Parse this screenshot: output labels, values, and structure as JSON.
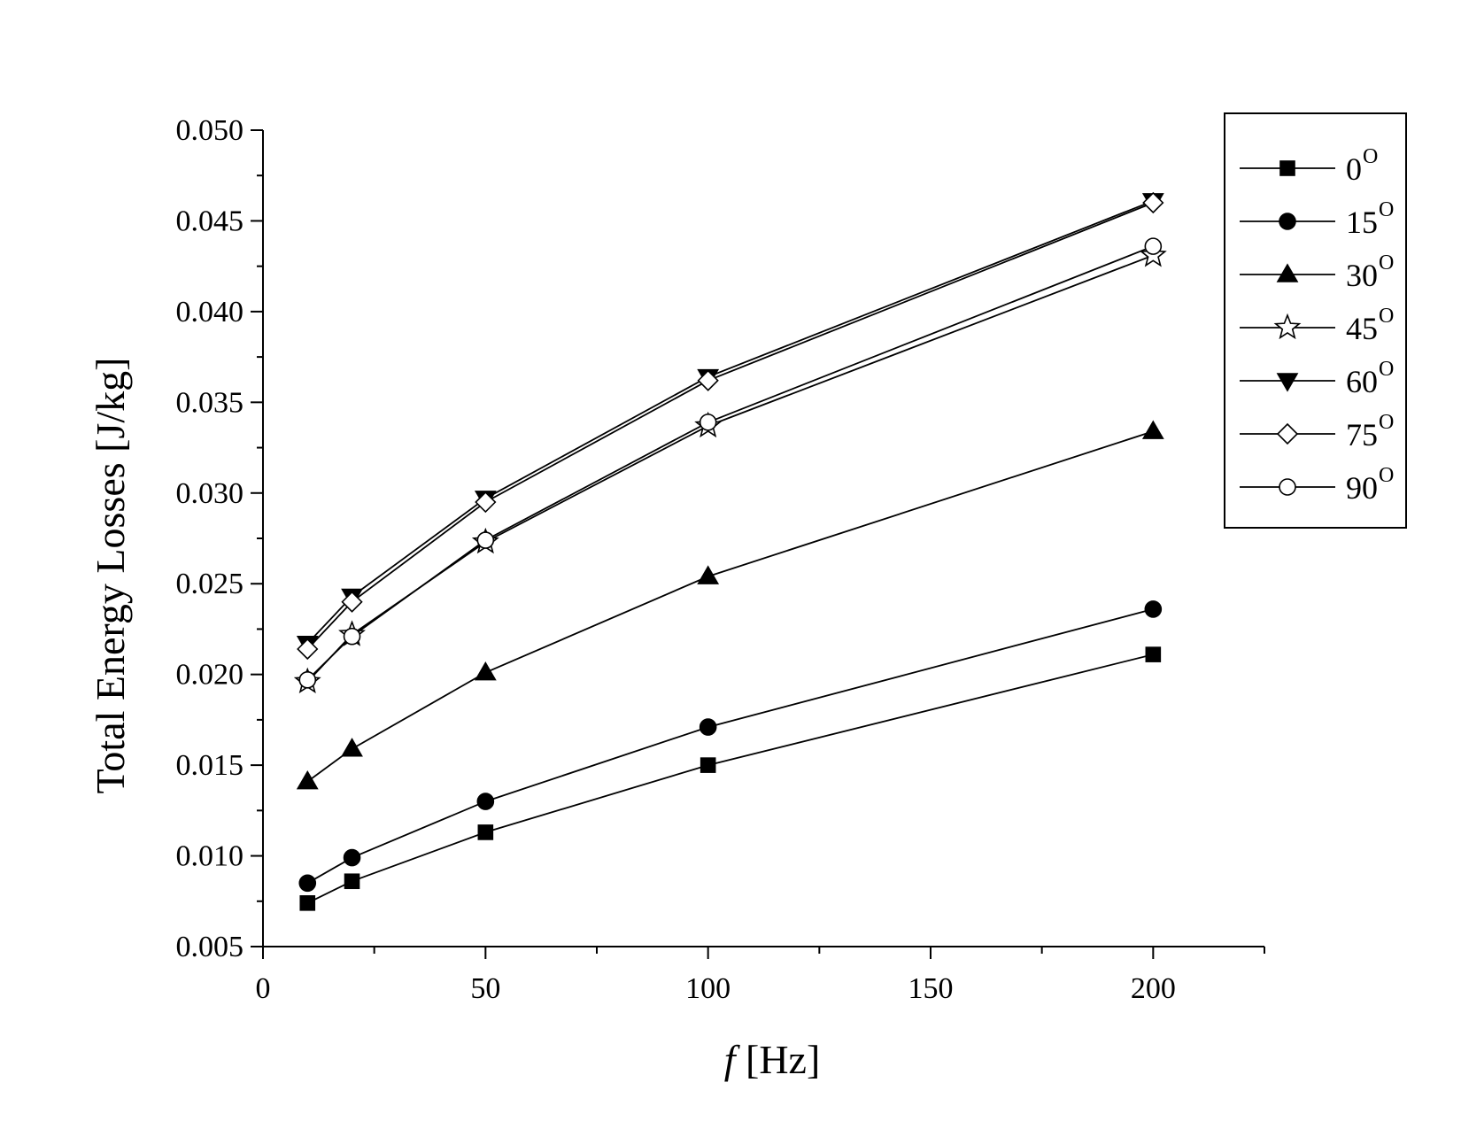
{
  "chart_data": {
    "type": "line",
    "xlabel_italic": "f",
    "xlabel_rest": " [Hz]",
    "ylabel": "Total Energy Losses [J/kg]",
    "xlim": [
      0,
      225
    ],
    "ylim": [
      0.005,
      0.05
    ],
    "x_ticks": [
      0,
      50,
      100,
      150,
      200
    ],
    "x_tick_labels": [
      "0",
      "50",
      "100",
      "150",
      "200"
    ],
    "x_minor_ticks": [
      25,
      75,
      125,
      175,
      225
    ],
    "y_ticks": [
      0.005,
      0.01,
      0.015,
      0.02,
      0.025,
      0.03,
      0.035,
      0.04,
      0.045,
      0.05
    ],
    "y_tick_labels": [
      "0.005",
      "0.010",
      "0.015",
      "0.020",
      "0.025",
      "0.030",
      "0.035",
      "0.040",
      "0.045",
      "0.050"
    ],
    "y_minor_ticks": [
      0.0075,
      0.0125,
      0.0175,
      0.0225,
      0.0275,
      0.0325,
      0.0375,
      0.0425,
      0.0475
    ],
    "grid": false,
    "legend_position": "top-right",
    "x": [
      10,
      20,
      50,
      100,
      200
    ],
    "series": [
      {
        "name": "0",
        "sup": "O",
        "marker": "square-filled",
        "values": [
          0.0074,
          0.0086,
          0.0113,
          0.015,
          0.0211
        ]
      },
      {
        "name": "15",
        "sup": "O",
        "marker": "circle-filled",
        "values": [
          0.0085,
          0.0099,
          0.013,
          0.0171,
          0.0236
        ]
      },
      {
        "name": "30",
        "sup": "O",
        "marker": "triangle-up-filled",
        "values": [
          0.0141,
          0.0159,
          0.0201,
          0.0254,
          0.0334
        ]
      },
      {
        "name": "45",
        "sup": "O",
        "marker": "star-open",
        "values": [
          0.0196,
          0.0222,
          0.0273,
          0.0337,
          0.0431
        ]
      },
      {
        "name": "60",
        "sup": "O",
        "marker": "triangle-down-filled",
        "values": [
          0.0217,
          0.0243,
          0.0297,
          0.0364,
          0.0461
        ]
      },
      {
        "name": "75",
        "sup": "O",
        "marker": "diamond-open",
        "values": [
          0.0214,
          0.024,
          0.0295,
          0.0362,
          0.046
        ]
      },
      {
        "name": "90",
        "sup": "O",
        "marker": "circle-open",
        "values": [
          0.0197,
          0.0221,
          0.0274,
          0.0339,
          0.0436
        ]
      }
    ],
    "colors": {
      "line": "#000000",
      "open_fill": "#ffffff"
    }
  }
}
